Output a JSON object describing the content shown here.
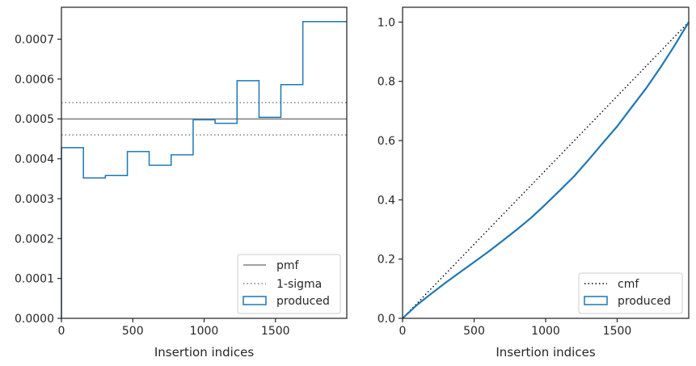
{
  "chart_data": [
    {
      "type": "step",
      "xlabel": "Insertion indices",
      "ylabel": "",
      "xlim": [
        0,
        2000
      ],
      "ylim": [
        0,
        0.00078
      ],
      "xticks": [
        "0",
        "500",
        "1000",
        "1500"
      ],
      "xtick_values": [
        0,
        500,
        1000,
        1500
      ],
      "yticks": [
        "0.0000",
        "0.0001",
        "0.0002",
        "0.0003",
        "0.0004",
        "0.0005",
        "0.0006",
        "0.0007"
      ],
      "ytick_values": [
        0,
        0.0001,
        0.0002,
        0.0003,
        0.0004,
        0.0005,
        0.0006,
        0.0007
      ],
      "legend_position": "lower-right",
      "legend": [
        "pmf",
        "1-sigma",
        "produced"
      ],
      "pmf": 0.0005,
      "sigma_band": [
        0.00046,
        0.000541
      ],
      "bin_edges": [
        0,
        154,
        308,
        462,
        615,
        769,
        923,
        1077,
        1231,
        1385,
        1538,
        1692,
        1846,
        2000
      ],
      "produced": [
        0.000428,
        0.000352,
        0.000358,
        0.000418,
        0.000384,
        0.00041,
        0.000498,
        0.000489,
        0.000596,
        0.000504,
        0.000586,
        0.000744,
        0.000744
      ],
      "colors": {
        "produced": "#1f77b4",
        "pmf": "#808080",
        "sigma": "#808080"
      }
    },
    {
      "type": "line",
      "xlabel": "Insertion indices",
      "ylabel": "",
      "xlim": [
        0,
        2000
      ],
      "ylim": [
        0,
        1.05
      ],
      "xticks": [
        "0",
        "500",
        "1000",
        "1500"
      ],
      "xtick_values": [
        0,
        500,
        1000,
        1500
      ],
      "yticks": [
        "0.0",
        "0.2",
        "0.4",
        "0.6",
        "0.8",
        "1.0"
      ],
      "ytick_values": [
        0,
        0.2,
        0.4,
        0.6,
        0.8,
        1.0
      ],
      "legend_position": "lower-right",
      "legend": [
        "cmf",
        "produced"
      ],
      "cmf": {
        "x": [
          0,
          2000
        ],
        "y": [
          0,
          1.0
        ]
      },
      "produced": {
        "x": [
          0,
          100,
          200,
          300,
          400,
          500,
          600,
          700,
          800,
          900,
          1000,
          1100,
          1200,
          1300,
          1400,
          1500,
          1600,
          1700,
          1800,
          1900,
          2000
        ],
        "y": [
          0,
          0.045,
          0.083,
          0.12,
          0.155,
          0.19,
          0.225,
          0.262,
          0.3,
          0.34,
          0.385,
          0.432,
          0.48,
          0.535,
          0.592,
          0.648,
          0.712,
          0.775,
          0.845,
          0.92,
          1.0
        ]
      },
      "colors": {
        "produced": "#1f77b4",
        "cmf": "#000000"
      }
    }
  ]
}
